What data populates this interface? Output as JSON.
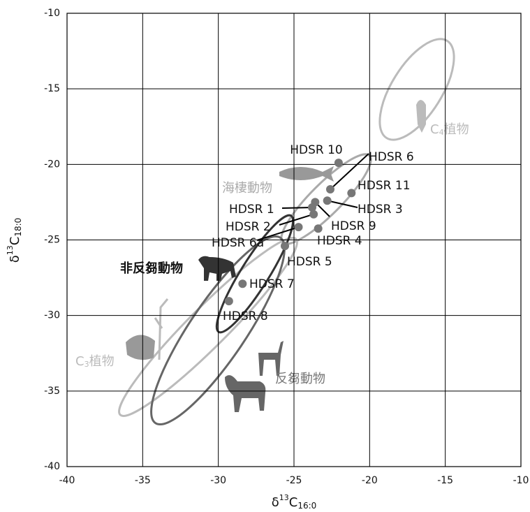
{
  "chart_data": {
    "type": "scatter",
    "x_label": {
      "prefix": "δ",
      "sup": "13",
      "base": "C",
      "sub": "16:0"
    },
    "y_label": {
      "prefix": "δ",
      "sup": "13",
      "base": "C",
      "sub": "18:0"
    },
    "xlim": [
      -40,
      -10
    ],
    "ylim": [
      -40,
      -10
    ],
    "xticks": [
      -40,
      -35,
      -30,
      -25,
      -20,
      -15,
      -10
    ],
    "yticks": [
      -40,
      -35,
      -30,
      -25,
      -20,
      -15,
      -10
    ],
    "grid": true,
    "series": [
      {
        "color": "#777777",
        "labels": [
          "HDSR 10",
          "HDSR 6",
          "HDSR 11",
          "HDSR 3",
          "HDSR 9",
          "HDSR 1",
          "HDSR 2",
          "HDSR 4",
          "HDSR 6a",
          "HDSR 5",
          "HDSR 7",
          "HDSR 8"
        ],
        "x": [
          -22.05,
          -22.6,
          -21.2,
          -22.8,
          -23.6,
          -23.8,
          -23.7,
          -23.4,
          -24.7,
          -25.6,
          -28.4,
          -29.3
        ],
        "values": [
          -19.9,
          -21.65,
          -21.9,
          -22.4,
          -22.5,
          -22.85,
          -23.3,
          -24.25,
          -24.15,
          -25.4,
          -27.9,
          -29.05
        ]
      }
    ],
    "groups": {
      "marine": "海棲動物",
      "non_ruminant": "非反芻動物",
      "ruminant": "反芻動物",
      "c4": {
        "base": "C",
        "sub": "4",
        "text": "植物"
      },
      "c3": {
        "base": "C",
        "sub": "3",
        "text": "植物"
      }
    }
  }
}
